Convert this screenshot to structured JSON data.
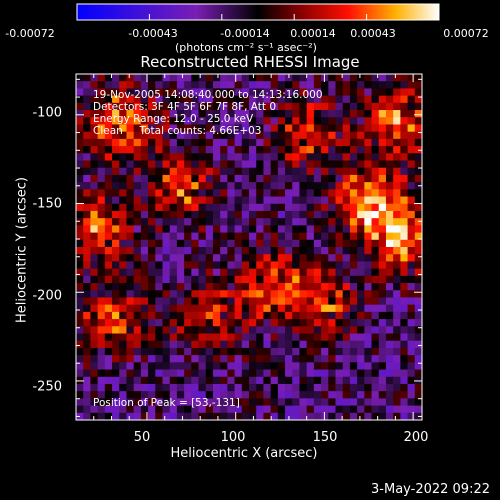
{
  "colorbar": {
    "ticks": [
      "-0.00072",
      "-0.00043",
      "-0.00014",
      "0.00014",
      "0.00043",
      "0.00072"
    ],
    "units": "(photons cm⁻² s⁻¹ asec⁻²)"
  },
  "chart_data": {
    "type": "heatmap",
    "title": "Reconstructed RHESSI Image",
    "xlabel": "Heliocentric X (arcsec)",
    "ylabel": "Heliocentric Y (arcsec)",
    "xlim": [
      10,
      205
    ],
    "ylim": [
      -272,
      -77
    ],
    "xticks": [
      "50",
      "100",
      "150",
      "200"
    ],
    "yticks": [
      "-100",
      "-150",
      "-200",
      "-250"
    ],
    "zlim": [
      -0.00072,
      0.00072
    ],
    "colormap": "blue-purple-red-yellow-white",
    "peak": [
      53,
      -131
    ],
    "hot_regions_arcsec": [
      {
        "x": 35,
        "y": -105,
        "w": 0.00062
      },
      {
        "x": 20,
        "y": -165,
        "w": 0.00055
      },
      {
        "x": 70,
        "y": -140,
        "w": 0.0005
      },
      {
        "x": 190,
        "y": -105,
        "w": 0.00058
      },
      {
        "x": 175,
        "y": -150,
        "w": 0.00066
      },
      {
        "x": 195,
        "y": -170,
        "w": 0.0006
      },
      {
        "x": 120,
        "y": -195,
        "w": 0.0005
      },
      {
        "x": 150,
        "y": -205,
        "w": 0.00045
      },
      {
        "x": 30,
        "y": -215,
        "w": 0.00045
      },
      {
        "x": 85,
        "y": -215,
        "w": 0.0004
      },
      {
        "x": 140,
        "y": -110,
        "w": 0.00045
      }
    ],
    "annotations": [
      "19-Nov-2005 14:08:40.000 to 14:13:16.000",
      "Detectors: 3F 4F 5F 6F 7F 8F, Att 0",
      "Energy Range: 12.0 - 25.0 keV",
      "Clean     Total counts: 4.66E+03",
      "Position of Peak = [53,-131]"
    ]
  },
  "timestamp": "3-May-2022 09:22"
}
